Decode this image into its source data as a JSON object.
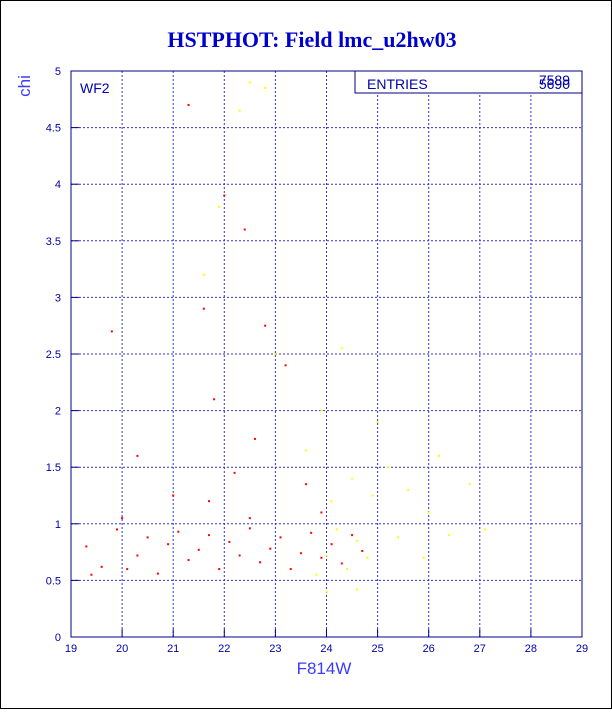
{
  "chart_data": {
    "type": "scatter",
    "title": "HSTPHOT: Field lmc_u2hw03",
    "xlabel": "F814W",
    "ylabel": "chi",
    "xlim": [
      19,
      29
    ],
    "ylim": [
      0,
      5
    ],
    "x_ticks": [
      "19",
      "20",
      "21",
      "22",
      "23",
      "24",
      "25",
      "26",
      "27",
      "28",
      "29"
    ],
    "y_ticks": [
      "0",
      "0.5",
      "1",
      "1.5",
      "2",
      "2.5",
      "3",
      "3.5",
      "4",
      "4.5",
      "5"
    ],
    "grid": true,
    "panel_label": "WF2",
    "stats_box": {
      "label": "ENTRIES",
      "values": [
        "7589",
        "5690"
      ]
    },
    "series": [
      {
        "color": "#ff0000",
        "points": [
          [
            19.3,
            0.8
          ],
          [
            19.6,
            0.62
          ],
          [
            19.9,
            0.95
          ],
          [
            20.1,
            0.6
          ],
          [
            20.3,
            0.72
          ],
          [
            20.5,
            0.88
          ],
          [
            20.7,
            0.56
          ],
          [
            20.9,
            0.82
          ],
          [
            21.1,
            0.93
          ],
          [
            21.3,
            0.68
          ],
          [
            21.5,
            0.77
          ],
          [
            21.7,
            0.9
          ],
          [
            21.9,
            0.6
          ],
          [
            22.1,
            0.84
          ],
          [
            22.3,
            0.72
          ],
          [
            22.5,
            0.96
          ],
          [
            22.7,
            0.66
          ],
          [
            22.9,
            0.78
          ],
          [
            23.1,
            0.88
          ],
          [
            23.3,
            0.6
          ],
          [
            23.5,
            0.74
          ],
          [
            23.7,
            0.92
          ],
          [
            23.9,
            0.7
          ],
          [
            24.1,
            0.82
          ],
          [
            24.3,
            0.65
          ],
          [
            24.5,
            0.9
          ],
          [
            24.7,
            0.76
          ],
          [
            22.2,
            1.45
          ],
          [
            22.6,
            1.75
          ],
          [
            21.8,
            2.1
          ],
          [
            21.6,
            2.9
          ],
          [
            22.0,
            3.9
          ],
          [
            22.4,
            3.6
          ],
          [
            21.3,
            4.7
          ],
          [
            22.8,
            2.75
          ],
          [
            23.2,
            2.4
          ],
          [
            19.8,
            2.7
          ],
          [
            20.3,
            1.6
          ],
          [
            21.0,
            1.25
          ],
          [
            23.6,
            1.35
          ],
          [
            23.9,
            1.1
          ],
          [
            22.5,
            1.05
          ],
          [
            21.7,
            1.2
          ],
          [
            20.0,
            1.05
          ],
          [
            19.4,
            0.55
          ]
        ]
      },
      {
        "color": "#ffff00",
        "points": [
          [
            23.8,
            0.55
          ],
          [
            24.0,
            0.72
          ],
          [
            24.2,
            0.95
          ],
          [
            24.4,
            0.6
          ],
          [
            24.6,
            0.85
          ],
          [
            24.8,
            0.7
          ],
          [
            24.1,
            1.2
          ],
          [
            24.5,
            1.4
          ],
          [
            25.2,
            1.5
          ],
          [
            25.6,
            1.3
          ],
          [
            26.0,
            1.1
          ],
          [
            26.4,
            0.9
          ],
          [
            26.8,
            1.35
          ],
          [
            27.1,
            0.95
          ],
          [
            25.9,
            0.7
          ],
          [
            25.4,
            0.88
          ],
          [
            23.6,
            1.65
          ],
          [
            23.9,
            2.0
          ],
          [
            24.3,
            2.55
          ],
          [
            23.0,
            2.5
          ],
          [
            22.5,
            4.9
          ],
          [
            22.8,
            4.85
          ],
          [
            22.3,
            4.65
          ],
          [
            21.9,
            3.8
          ],
          [
            21.6,
            3.2
          ],
          [
            24.0,
            0.4
          ],
          [
            24.6,
            0.42
          ],
          [
            26.2,
            1.6
          ],
          [
            25.0,
            1.9
          ],
          [
            24.9,
            1.25
          ]
        ]
      }
    ]
  }
}
